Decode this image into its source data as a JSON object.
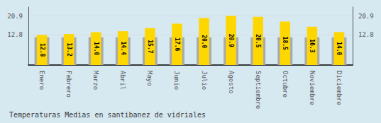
{
  "chart_data": {
    "type": "bar",
    "title": "Temperaturas Medias en santibanez de vidriales",
    "categories": [
      "Enero",
      "Febrero",
      "Marzo",
      "Abril",
      "Mayo",
      "Junio",
      "Julio",
      "Agosto",
      "Septiembre",
      "Octubre",
      "Noviembre",
      "Diciembre"
    ],
    "series": [
      {
        "color": "#AAAAAA",
        "values": [
          11.8,
          11.8,
          11.8,
          11.8,
          11.8,
          11.8,
          11.8,
          11.8,
          11.8,
          11.8,
          11.8,
          11.8
        ]
      },
      {
        "color": "#FFD700",
        "values": [
          12.8,
          13.2,
          14.0,
          14.4,
          15.7,
          17.6,
          20.0,
          20.9,
          20.5,
          18.5,
          16.3,
          14.0
        ],
        "value_labels": [
          "12.8",
          "13.2",
          "14.0",
          "14.4",
          "15.7",
          "17.6",
          "20.0",
          "20.9",
          "20.5",
          "18.5",
          "16.3",
          "14.0"
        ],
        "data_labels": true
      }
    ],
    "ylim": [
      0,
      24.662
    ],
    "yticks": [
      12.8,
      20.9
    ],
    "y2lim": [
      0,
      24.662
    ],
    "y2ticks": [
      12.8,
      20.9
    ],
    "grid": true
  }
}
